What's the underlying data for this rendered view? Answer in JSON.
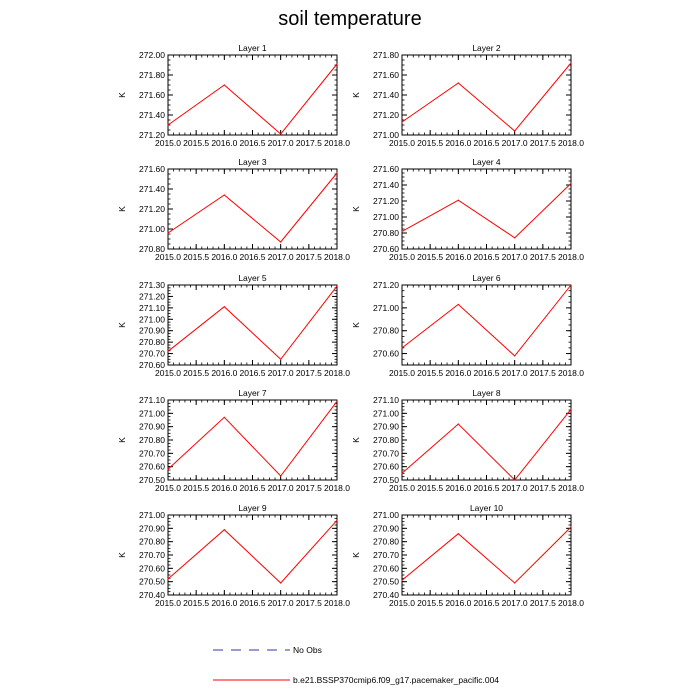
{
  "figure": {
    "title": "soil temperature",
    "legend": {
      "entries": [
        {
          "label": "No Obs",
          "style": "dashed",
          "color": "#3333aa"
        },
        {
          "label": "b.e21.BSSP370cmip6.f09_g17.pacemaker_pacific.004",
          "style": "solid",
          "color": "#ff0000"
        }
      ]
    }
  },
  "chart_data": [
    {
      "type": "line",
      "title": "Layer 1",
      "ylabel": "K",
      "x": [
        2015.0,
        2016.0,
        2017.0,
        2018.0
      ],
      "series": [
        {
          "name": "b.e21.BSSP370cmip6.f09_g17.pacemaker_pacific.004",
          "values": [
            271.3,
            271.7,
            271.21,
            271.91
          ]
        }
      ],
      "xlim": [
        2015.0,
        2018.0
      ],
      "ylim": [
        271.2,
        272.0
      ],
      "xticks": [
        "2015.0",
        "2015.5",
        "2016.0",
        "2016.5",
        "2017.0",
        "2017.5",
        "2018.0"
      ],
      "yticks": [
        "271.20",
        "271.40",
        "271.60",
        "271.80",
        "272.00"
      ]
    },
    {
      "type": "line",
      "title": "Layer 2",
      "ylabel": "K",
      "x": [
        2015.0,
        2016.0,
        2017.0,
        2018.0
      ],
      "series": [
        {
          "name": "b.e21.BSSP370cmip6.f09_g17.pacemaker_pacific.004",
          "values": [
            271.13,
            271.52,
            271.04,
            271.72
          ]
        }
      ],
      "xlim": [
        2015.0,
        2018.0
      ],
      "ylim": [
        271.0,
        271.8
      ],
      "xticks": [
        "2015.0",
        "2015.5",
        "2016.0",
        "2016.5",
        "2017.0",
        "2017.5",
        "2018.0"
      ],
      "yticks": [
        "271.00",
        "271.20",
        "271.40",
        "271.60",
        "271.80"
      ]
    },
    {
      "type": "line",
      "title": "Layer 3",
      "ylabel": "K",
      "x": [
        2015.0,
        2016.0,
        2017.0,
        2018.0
      ],
      "series": [
        {
          "name": "b.e21.BSSP370cmip6.f09_g17.pacemaker_pacific.004",
          "values": [
            270.96,
            271.34,
            270.87,
            271.56
          ]
        }
      ],
      "xlim": [
        2015.0,
        2018.0
      ],
      "ylim": [
        270.8,
        271.6
      ],
      "xticks": [
        "2015.0",
        "2015.5",
        "2016.0",
        "2016.5",
        "2017.0",
        "2017.5",
        "2018.0"
      ],
      "yticks": [
        "270.80",
        "271.00",
        "271.20",
        "271.40",
        "271.60"
      ]
    },
    {
      "type": "line",
      "title": "Layer 4",
      "ylabel": "K",
      "x": [
        2015.0,
        2016.0,
        2017.0,
        2018.0
      ],
      "series": [
        {
          "name": "b.e21.BSSP370cmip6.f09_g17.pacemaker_pacific.004",
          "values": [
            270.82,
            271.21,
            270.74,
            271.42
          ]
        }
      ],
      "xlim": [
        2015.0,
        2018.0
      ],
      "ylim": [
        270.6,
        271.6
      ],
      "xticks": [
        "2015.0",
        "2015.5",
        "2016.0",
        "2016.5",
        "2017.0",
        "2017.5",
        "2018.0"
      ],
      "yticks": [
        "270.60",
        "270.80",
        "271.00",
        "271.20",
        "271.40",
        "271.60"
      ]
    },
    {
      "type": "line",
      "title": "Layer 5",
      "ylabel": "K",
      "x": [
        2015.0,
        2016.0,
        2017.0,
        2018.0
      ],
      "series": [
        {
          "name": "b.e21.BSSP370cmip6.f09_g17.pacemaker_pacific.004",
          "values": [
            270.72,
            271.11,
            270.65,
            271.29
          ]
        }
      ],
      "xlim": [
        2015.0,
        2018.0
      ],
      "ylim": [
        270.6,
        271.3
      ],
      "xticks": [
        "2015.0",
        "2015.5",
        "2016.0",
        "2016.5",
        "2017.0",
        "2017.5",
        "2018.0"
      ],
      "yticks": [
        "270.60",
        "270.70",
        "270.80",
        "270.90",
        "271.00",
        "271.10",
        "271.20",
        "271.30"
      ]
    },
    {
      "type": "line",
      "title": "Layer 6",
      "ylabel": "K",
      "x": [
        2015.0,
        2016.0,
        2017.0,
        2018.0
      ],
      "series": [
        {
          "name": "b.e21.BSSP370cmip6.f09_g17.pacemaker_pacific.004",
          "values": [
            270.65,
            271.03,
            270.58,
            271.2
          ]
        }
      ],
      "xlim": [
        2015.0,
        2018.0
      ],
      "ylim": [
        270.5,
        271.2
      ],
      "xticks": [
        "2015.0",
        "2015.5",
        "2016.0",
        "2016.5",
        "2017.0",
        "2017.5",
        "2018.0"
      ],
      "yticks": [
        "270.60",
        "270.80",
        "271.00",
        "271.20"
      ]
    },
    {
      "type": "line",
      "title": "Layer 7",
      "ylabel": "K",
      "x": [
        2015.0,
        2016.0,
        2017.0,
        2018.0
      ],
      "series": [
        {
          "name": "b.e21.BSSP370cmip6.f09_g17.pacemaker_pacific.004",
          "values": [
            270.58,
            270.97,
            270.53,
            271.09
          ]
        }
      ],
      "xlim": [
        2015.0,
        2018.0
      ],
      "ylim": [
        270.5,
        271.1
      ],
      "xticks": [
        "2015.0",
        "2015.5",
        "2016.0",
        "2016.5",
        "2017.0",
        "2017.5",
        "2018.0"
      ],
      "yticks": [
        "270.50",
        "270.60",
        "270.70",
        "270.80",
        "270.90",
        "271.00",
        "271.10"
      ]
    },
    {
      "type": "line",
      "title": "Layer 8",
      "ylabel": "K",
      "x": [
        2015.0,
        2016.0,
        2017.0,
        2018.0
      ],
      "series": [
        {
          "name": "b.e21.BSSP370cmip6.f09_g17.pacemaker_pacific.004",
          "values": [
            270.55,
            270.92,
            270.5,
            271.03
          ]
        }
      ],
      "xlim": [
        2015.0,
        2018.0
      ],
      "ylim": [
        270.5,
        271.1
      ],
      "xticks": [
        "2015.0",
        "2015.5",
        "2016.0",
        "2016.5",
        "2017.0",
        "2017.5",
        "2018.0"
      ],
      "yticks": [
        "270.50",
        "270.60",
        "270.70",
        "270.80",
        "270.90",
        "271.00",
        "271.10"
      ]
    },
    {
      "type": "line",
      "title": "Layer 9",
      "ylabel": "K",
      "x": [
        2015.0,
        2016.0,
        2017.0,
        2018.0
      ],
      "series": [
        {
          "name": "b.e21.BSSP370cmip6.f09_g17.pacemaker_pacific.004",
          "values": [
            270.52,
            270.89,
            270.49,
            270.96
          ]
        }
      ],
      "xlim": [
        2015.0,
        2018.0
      ],
      "ylim": [
        270.4,
        271.0
      ],
      "xticks": [
        "2015.0",
        "2015.5",
        "2016.0",
        "2016.5",
        "2017.0",
        "2017.5",
        "2018.0"
      ],
      "yticks": [
        "270.40",
        "270.50",
        "270.60",
        "270.70",
        "270.80",
        "270.90",
        "271.00"
      ]
    },
    {
      "type": "line",
      "title": "Layer 10",
      "ylabel": "K",
      "x": [
        2015.0,
        2016.0,
        2017.0,
        2018.0
      ],
      "series": [
        {
          "name": "b.e21.BSSP370cmip6.f09_g17.pacemaker_pacific.004",
          "values": [
            270.51,
            270.86,
            270.49,
            270.91
          ]
        }
      ],
      "xlim": [
        2015.0,
        2018.0
      ],
      "ylim": [
        270.4,
        271.0
      ],
      "xticks": [
        "2015.0",
        "2015.5",
        "2016.0",
        "2016.5",
        "2017.0",
        "2017.5",
        "2018.0"
      ],
      "yticks": [
        "270.40",
        "270.50",
        "270.60",
        "270.70",
        "270.80",
        "270.90",
        "271.00"
      ]
    }
  ]
}
